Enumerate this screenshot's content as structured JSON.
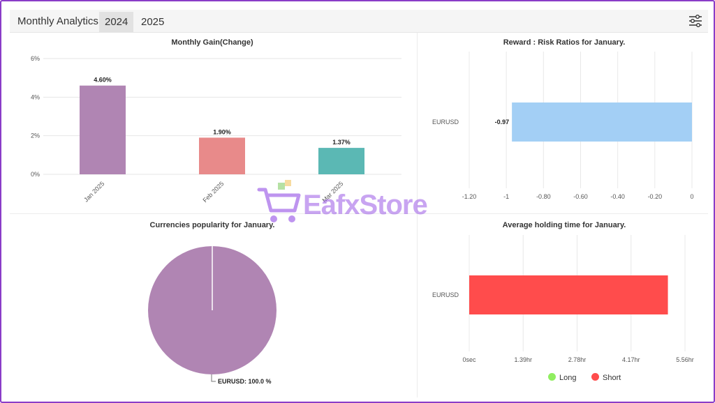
{
  "header": {
    "title": "Monthly Analytics",
    "tabs": [
      {
        "label": "2024",
        "active": true
      },
      {
        "label": "2025",
        "active": false
      }
    ],
    "filter_icon": "sliders-icon"
  },
  "watermark": {
    "text": "EafxStore",
    "icon": "shopping-cart-icon"
  },
  "charts": {
    "monthly_gain": {
      "type": "bar",
      "title": "Monthly Gain(Change)",
      "categories": [
        "Jan 2025",
        "Feb 2025",
        "Mar 2025"
      ],
      "values": [
        4.6,
        1.9,
        1.37
      ],
      "value_labels": [
        "4.60%",
        "1.90%",
        "1.37%"
      ],
      "colors": [
        "#b085b3",
        "#e88a8a",
        "#5bb8b4"
      ],
      "yticks": [
        0,
        2,
        4,
        6
      ],
      "ytick_labels": [
        "0%",
        "2%",
        "4%",
        "6%"
      ],
      "ylim": [
        0,
        6
      ],
      "grid": true
    },
    "reward_risk": {
      "type": "bar",
      "orientation": "horizontal",
      "title": "Reward : Risk Ratios for January.",
      "categories": [
        "EURUSD"
      ],
      "values": [
        -0.97
      ],
      "value_labels": [
        "-0.97"
      ],
      "color": "#a3cff5",
      "xticks": [
        -1.2,
        -1,
        -0.8,
        -0.6,
        -0.4,
        -0.2,
        0
      ],
      "xtick_labels": [
        "-1.20",
        "-1",
        "-0.80",
        "-0.60",
        "-0.40",
        "-0.20",
        "0"
      ],
      "xlim": [
        -1.2,
        0
      ],
      "grid": true
    },
    "currencies": {
      "type": "pie",
      "title": "Currencies popularity for January.",
      "slices": [
        {
          "label": "EURUSD",
          "value": 100.0,
          "color": "#b085b3"
        }
      ],
      "slice_labels": [
        "EURUSD: 100.0 %"
      ]
    },
    "holding_time": {
      "type": "bar",
      "orientation": "horizontal",
      "title": "Average holding time for January.",
      "categories": [
        "EURUSD"
      ],
      "series": [
        {
          "name": "Long",
          "values": [
            0
          ],
          "color": "#90ee60"
        },
        {
          "name": "Short",
          "values": [
            5.12
          ],
          "color": "#ff4c4c"
        }
      ],
      "xticks": [
        0,
        1.39,
        2.78,
        4.17,
        5.56
      ],
      "xtick_labels": [
        "0sec",
        "1.39hr",
        "2.78hr",
        "4.17hr",
        "5.56hr"
      ],
      "xlim": [
        0,
        5.56
      ],
      "legend": "bottom-center",
      "grid": true
    }
  }
}
